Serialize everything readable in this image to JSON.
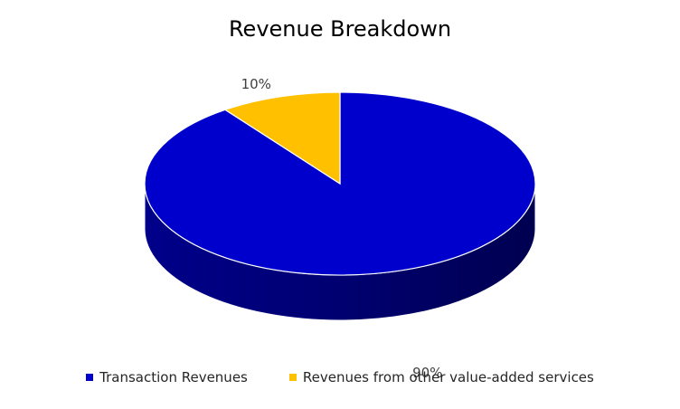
{
  "chart_data": {
    "type": "pie",
    "title": "Revenue Breakdown",
    "slices": [
      {
        "name": "Transaction Revenues",
        "value": 90,
        "label": "90%",
        "color": "#0000cc"
      },
      {
        "name": "Revenues from other value-added services",
        "value": 10,
        "label": "10%",
        "color": "#ffc000"
      }
    ],
    "legend_position": "bottom",
    "style": "3d"
  }
}
